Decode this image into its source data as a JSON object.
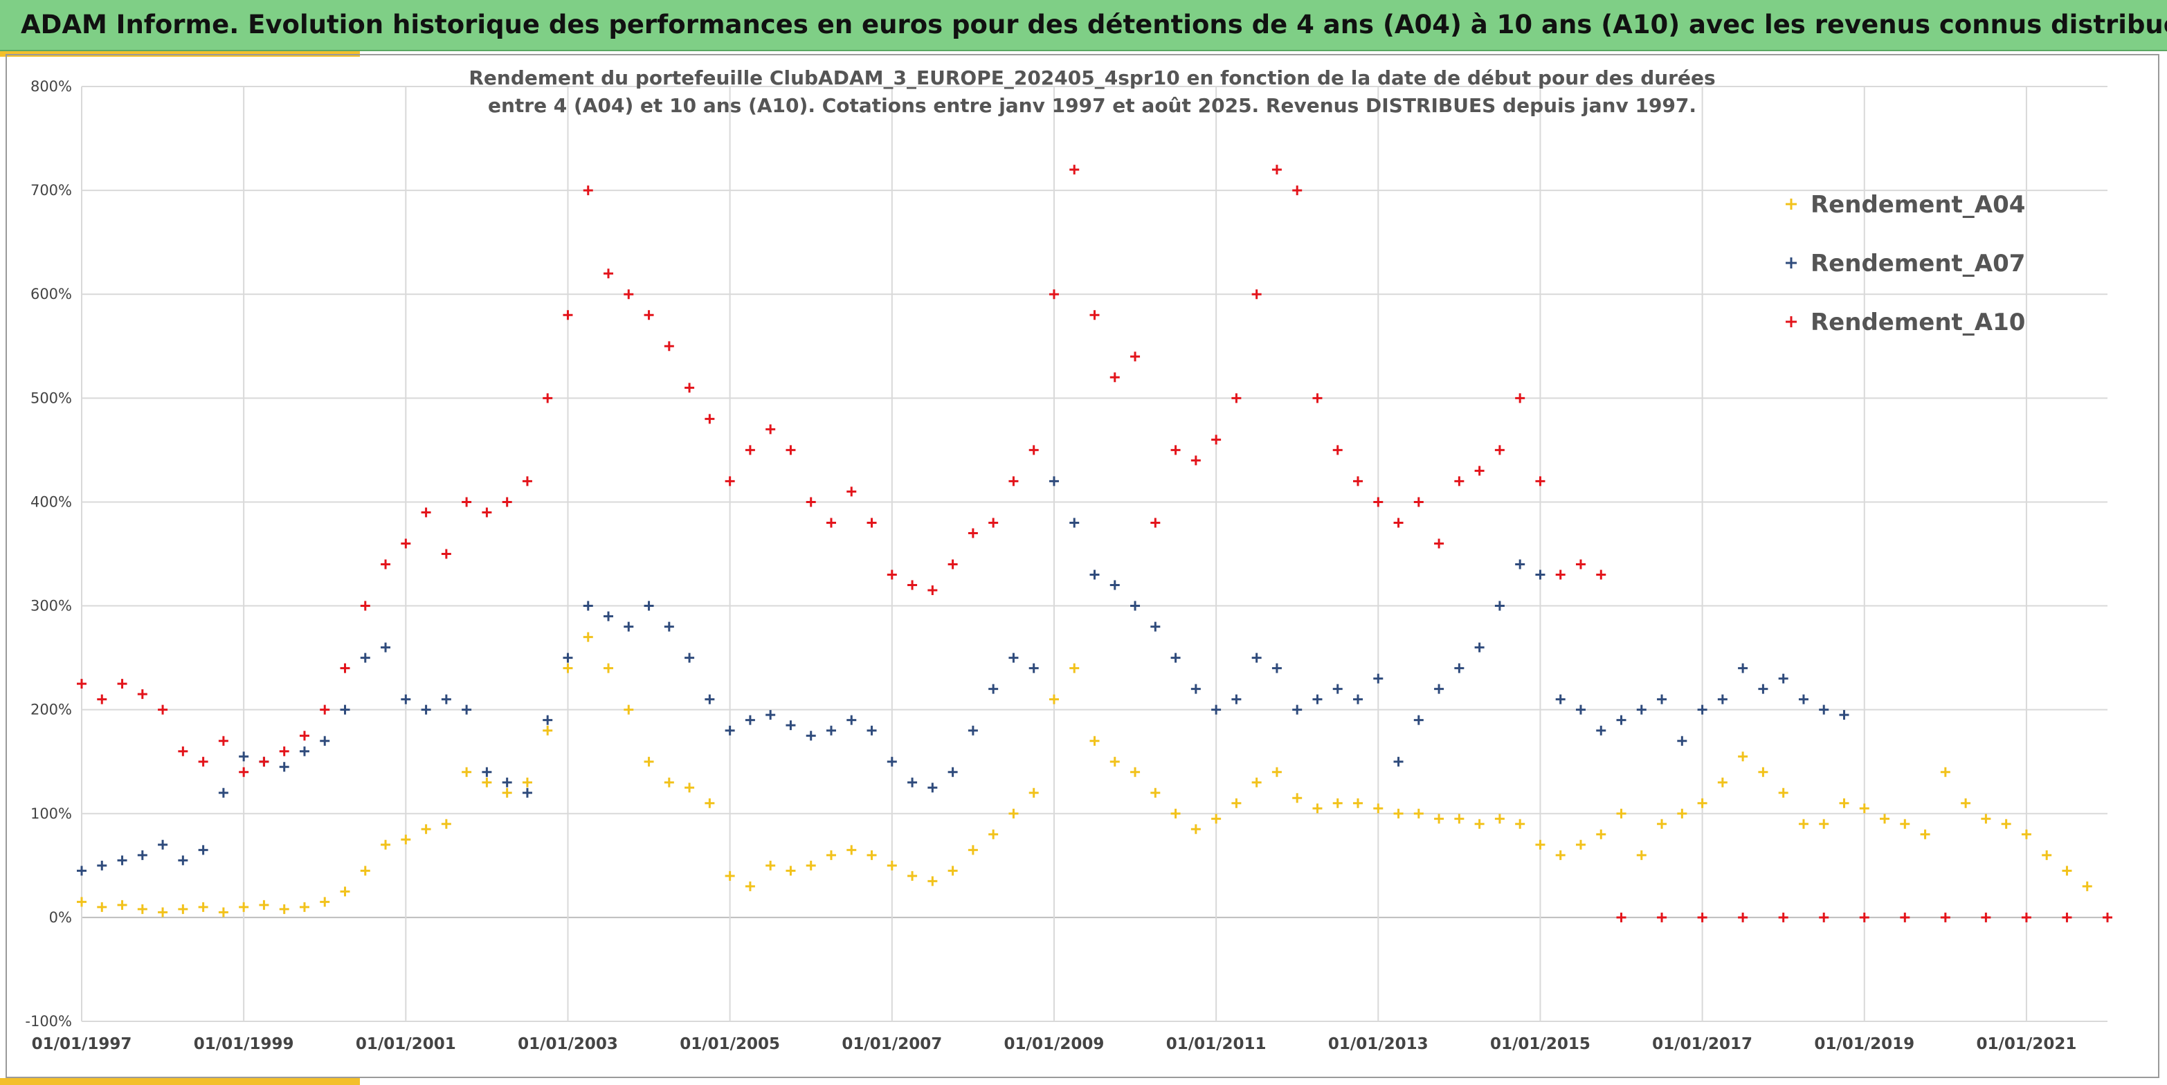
{
  "header": {
    "title": "ADAM Informe. Evolution historique des performances en euros pour des détentions de 4 ans (A04) à 10 ans (A10) avec les revenus connus distribués"
  },
  "colors": {
    "banner": "#7fcf86",
    "accent": "#f3bf2b",
    "A04": "#f2c21b",
    "A07": "#2f4b7c",
    "A10": "#e3141b"
  },
  "chart_data": {
    "type": "scatter",
    "title_line1": "Rendement du portefeuille ClubADAM_3_EUROPE_202405_4spr10  en fonction de la date de début pour des durées",
    "title_line2": "entre 4 (A04) et 10 ans (A10). Cotations entre janv 1997 et août 2025. Revenus DISTRIBUES depuis janv 1997.",
    "x_range": [
      "1997-01-01",
      "2022-01-01"
    ],
    "y_range": [
      -100,
      800
    ],
    "y_unit": "%",
    "y_ticks": [
      -100,
      0,
      100,
      200,
      300,
      400,
      500,
      600,
      700,
      800
    ],
    "y_tick_labels": [
      "-100%",
      "0%",
      "100%",
      "200%",
      "300%",
      "400%",
      "500%",
      "600%",
      "700%",
      "800%"
    ],
    "x_tick_labels": [
      "01/01/1997",
      "01/01/1999",
      "01/01/2001",
      "01/01/2003",
      "01/01/2005",
      "01/01/2007",
      "01/01/2009",
      "01/01/2011",
      "01/01/2013",
      "01/01/2015",
      "01/01/2017",
      "01/01/2019",
      "01/01/2021"
    ],
    "grid": true,
    "legend_position": "top-right",
    "marker": "+",
    "series": [
      {
        "name": "Rendement_A04",
        "color": "#f2c21b",
        "points": [
          [
            "1997-01",
            15
          ],
          [
            "1997-04",
            10
          ],
          [
            "1997-07",
            12
          ],
          [
            "1997-10",
            8
          ],
          [
            "1998-01",
            5
          ],
          [
            "1998-04",
            8
          ],
          [
            "1998-07",
            10
          ],
          [
            "1998-10",
            5
          ],
          [
            "1999-01",
            10
          ],
          [
            "1999-04",
            12
          ],
          [
            "1999-07",
            8
          ],
          [
            "1999-10",
            10
          ],
          [
            "2000-01",
            15
          ],
          [
            "2000-04",
            25
          ],
          [
            "2000-07",
            45
          ],
          [
            "2000-10",
            70
          ],
          [
            "2001-01",
            75
          ],
          [
            "2001-04",
            85
          ],
          [
            "2001-07",
            90
          ],
          [
            "2001-10",
            140
          ],
          [
            "2002-01",
            130
          ],
          [
            "2002-04",
            120
          ],
          [
            "2002-07",
            130
          ],
          [
            "2002-10",
            180
          ],
          [
            "2003-01",
            240
          ],
          [
            "2003-04",
            270
          ],
          [
            "2003-07",
            240
          ],
          [
            "2003-10",
            200
          ],
          [
            "2004-01",
            150
          ],
          [
            "2004-04",
            130
          ],
          [
            "2004-07",
            125
          ],
          [
            "2004-10",
            110
          ],
          [
            "2005-01",
            40
          ],
          [
            "2005-04",
            30
          ],
          [
            "2005-07",
            50
          ],
          [
            "2005-10",
            45
          ],
          [
            "2006-01",
            50
          ],
          [
            "2006-04",
            60
          ],
          [
            "2006-07",
            65
          ],
          [
            "2006-10",
            60
          ],
          [
            "2007-01",
            50
          ],
          [
            "2007-04",
            40
          ],
          [
            "2007-07",
            35
          ],
          [
            "2007-10",
            45
          ],
          [
            "2008-01",
            65
          ],
          [
            "2008-04",
            80
          ],
          [
            "2008-07",
            100
          ],
          [
            "2008-10",
            120
          ],
          [
            "2009-01",
            210
          ],
          [
            "2009-04",
            240
          ],
          [
            "2009-07",
            170
          ],
          [
            "2009-10",
            150
          ],
          [
            "2010-01",
            140
          ],
          [
            "2010-04",
            120
          ],
          [
            "2010-07",
            100
          ],
          [
            "2010-10",
            85
          ],
          [
            "2011-01",
            95
          ],
          [
            "2011-04",
            110
          ],
          [
            "2011-07",
            130
          ],
          [
            "2011-10",
            140
          ],
          [
            "2012-01",
            115
          ],
          [
            "2012-04",
            105
          ],
          [
            "2012-07",
            110
          ],
          [
            "2012-10",
            110
          ],
          [
            "2013-01",
            105
          ],
          [
            "2013-04",
            100
          ],
          [
            "2013-07",
            100
          ],
          [
            "2013-10",
            95
          ],
          [
            "2014-01",
            95
          ],
          [
            "2014-04",
            90
          ],
          [
            "2014-07",
            95
          ],
          [
            "2014-10",
            90
          ],
          [
            "2015-01",
            70
          ],
          [
            "2015-04",
            60
          ],
          [
            "2015-07",
            70
          ],
          [
            "2015-10",
            80
          ],
          [
            "2016-01",
            100
          ],
          [
            "2016-04",
            60
          ],
          [
            "2016-07",
            90
          ],
          [
            "2016-10",
            100
          ],
          [
            "2017-01",
            110
          ],
          [
            "2017-04",
            130
          ],
          [
            "2017-07",
            155
          ],
          [
            "2017-10",
            140
          ],
          [
            "2018-01",
            120
          ],
          [
            "2018-04",
            90
          ],
          [
            "2018-07",
            90
          ],
          [
            "2018-10",
            110
          ],
          [
            "2019-01",
            105
          ],
          [
            "2019-04",
            95
          ],
          [
            "2019-07",
            90
          ],
          [
            "2019-10",
            80
          ],
          [
            "2020-01",
            140
          ],
          [
            "2020-04",
            110
          ],
          [
            "2020-07",
            95
          ],
          [
            "2020-10",
            90
          ],
          [
            "2021-01",
            80
          ],
          [
            "2021-04",
            60
          ],
          [
            "2021-07",
            45
          ],
          [
            "2021-10",
            30
          ]
        ]
      },
      {
        "name": "Rendement_A07",
        "color": "#2f4b7c",
        "points": [
          [
            "1997-01",
            45
          ],
          [
            "1997-04",
            50
          ],
          [
            "1997-07",
            55
          ],
          [
            "1997-10",
            60
          ],
          [
            "1998-01",
            70
          ],
          [
            "1998-04",
            55
          ],
          [
            "1998-07",
            65
          ],
          [
            "1998-10",
            120
          ],
          [
            "1999-01",
            155
          ],
          [
            "1999-04",
            150
          ],
          [
            "1999-07",
            145
          ],
          [
            "1999-10",
            160
          ],
          [
            "2000-01",
            170
          ],
          [
            "2000-04",
            200
          ],
          [
            "2000-07",
            250
          ],
          [
            "2000-10",
            260
          ],
          [
            "2001-01",
            210
          ],
          [
            "2001-04",
            200
          ],
          [
            "2001-07",
            210
          ],
          [
            "2001-10",
            200
          ],
          [
            "2002-01",
            140
          ],
          [
            "2002-04",
            130
          ],
          [
            "2002-07",
            120
          ],
          [
            "2002-10",
            190
          ],
          [
            "2003-01",
            250
          ],
          [
            "2003-04",
            300
          ],
          [
            "2003-07",
            290
          ],
          [
            "2003-10",
            280
          ],
          [
            "2004-01",
            300
          ],
          [
            "2004-04",
            280
          ],
          [
            "2004-07",
            250
          ],
          [
            "2004-10",
            210
          ],
          [
            "2005-01",
            180
          ],
          [
            "2005-04",
            190
          ],
          [
            "2005-07",
            195
          ],
          [
            "2005-10",
            185
          ],
          [
            "2006-01",
            175
          ],
          [
            "2006-04",
            180
          ],
          [
            "2006-07",
            190
          ],
          [
            "2006-10",
            180
          ],
          [
            "2007-01",
            150
          ],
          [
            "2007-04",
            130
          ],
          [
            "2007-07",
            125
          ],
          [
            "2007-10",
            140
          ],
          [
            "2008-01",
            180
          ],
          [
            "2008-04",
            220
          ],
          [
            "2008-07",
            250
          ],
          [
            "2008-10",
            240
          ],
          [
            "2009-01",
            420
          ],
          [
            "2009-04",
            380
          ],
          [
            "2009-07",
            330
          ],
          [
            "2009-10",
            320
          ],
          [
            "2010-01",
            300
          ],
          [
            "2010-04",
            280
          ],
          [
            "2010-07",
            250
          ],
          [
            "2010-10",
            220
          ],
          [
            "2011-01",
            200
          ],
          [
            "2011-04",
            210
          ],
          [
            "2011-07",
            250
          ],
          [
            "2011-10",
            240
          ],
          [
            "2012-01",
            200
          ],
          [
            "2012-04",
            210
          ],
          [
            "2012-07",
            220
          ],
          [
            "2012-10",
            210
          ],
          [
            "2013-01",
            230
          ],
          [
            "2013-04",
            150
          ],
          [
            "2013-07",
            190
          ],
          [
            "2013-10",
            220
          ],
          [
            "2014-01",
            240
          ],
          [
            "2014-04",
            260
          ],
          [
            "2014-07",
            300
          ],
          [
            "2014-10",
            340
          ],
          [
            "2015-01",
            330
          ],
          [
            "2015-04",
            210
          ],
          [
            "2015-07",
            200
          ],
          [
            "2015-10",
            180
          ],
          [
            "2016-01",
            190
          ],
          [
            "2016-04",
            200
          ],
          [
            "2016-07",
            210
          ],
          [
            "2016-10",
            170
          ],
          [
            "2017-01",
            200
          ],
          [
            "2017-04",
            210
          ],
          [
            "2017-07",
            240
          ],
          [
            "2017-10",
            220
          ],
          [
            "2018-01",
            230
          ],
          [
            "2018-04",
            210
          ],
          [
            "2018-07",
            200
          ],
          [
            "2018-10",
            195
          ]
        ]
      },
      {
        "name": "Rendement_A10",
        "color": "#e3141b",
        "points": [
          [
            "1997-01",
            225
          ],
          [
            "1997-04",
            210
          ],
          [
            "1997-07",
            225
          ],
          [
            "1997-10",
            215
          ],
          [
            "1998-01",
            200
          ],
          [
            "1998-04",
            160
          ],
          [
            "1998-07",
            150
          ],
          [
            "1998-10",
            170
          ],
          [
            "1999-01",
            140
          ],
          [
            "1999-04",
            150
          ],
          [
            "1999-07",
            160
          ],
          [
            "1999-10",
            175
          ],
          [
            "2000-01",
            200
          ],
          [
            "2000-04",
            240
          ],
          [
            "2000-07",
            300
          ],
          [
            "2000-10",
            340
          ],
          [
            "2001-01",
            360
          ],
          [
            "2001-04",
            390
          ],
          [
            "2001-07",
            350
          ],
          [
            "2001-10",
            400
          ],
          [
            "2002-01",
            390
          ],
          [
            "2002-04",
            400
          ],
          [
            "2002-07",
            420
          ],
          [
            "2002-10",
            500
          ],
          [
            "2003-01",
            580
          ],
          [
            "2003-04",
            700
          ],
          [
            "2003-07",
            620
          ],
          [
            "2003-10",
            600
          ],
          [
            "2004-01",
            580
          ],
          [
            "2004-04",
            550
          ],
          [
            "2004-07",
            510
          ],
          [
            "2004-10",
            480
          ],
          [
            "2005-01",
            420
          ],
          [
            "2005-04",
            450
          ],
          [
            "2005-07",
            470
          ],
          [
            "2005-10",
            450
          ],
          [
            "2006-01",
            400
          ],
          [
            "2006-04",
            380
          ],
          [
            "2006-07",
            410
          ],
          [
            "2006-10",
            380
          ],
          [
            "2007-01",
            330
          ],
          [
            "2007-04",
            320
          ],
          [
            "2007-07",
            315
          ],
          [
            "2007-10",
            340
          ],
          [
            "2008-01",
            370
          ],
          [
            "2008-04",
            380
          ],
          [
            "2008-07",
            420
          ],
          [
            "2008-10",
            450
          ],
          [
            "2009-01",
            600
          ],
          [
            "2009-04",
            720
          ],
          [
            "2009-07",
            580
          ],
          [
            "2009-10",
            520
          ],
          [
            "2010-01",
            540
          ],
          [
            "2010-04",
            380
          ],
          [
            "2010-07",
            450
          ],
          [
            "2010-10",
            440
          ],
          [
            "2011-01",
            460
          ],
          [
            "2011-04",
            500
          ],
          [
            "2011-07",
            600
          ],
          [
            "2011-10",
            720
          ],
          [
            "2012-01",
            700
          ],
          [
            "2012-04",
            500
          ],
          [
            "2012-07",
            450
          ],
          [
            "2012-10",
            420
          ],
          [
            "2013-01",
            400
          ],
          [
            "2013-04",
            380
          ],
          [
            "2013-07",
            400
          ],
          [
            "2013-10",
            360
          ],
          [
            "2014-01",
            420
          ],
          [
            "2014-04",
            430
          ],
          [
            "2014-07",
            450
          ],
          [
            "2014-10",
            500
          ],
          [
            "2015-01",
            420
          ],
          [
            "2015-04",
            330
          ],
          [
            "2015-07",
            340
          ],
          [
            "2015-10",
            330
          ],
          [
            "2016-01",
            0
          ],
          [
            "2016-07",
            0
          ],
          [
            "2017-01",
            0
          ],
          [
            "2017-07",
            0
          ],
          [
            "2018-01",
            0
          ],
          [
            "2018-07",
            0
          ],
          [
            "2019-01",
            0
          ],
          [
            "2019-07",
            0
          ],
          [
            "2020-01",
            0
          ],
          [
            "2020-07",
            0
          ],
          [
            "2021-01",
            0
          ],
          [
            "2021-07",
            0
          ],
          [
            "2022-01",
            0
          ]
        ]
      }
    ]
  }
}
